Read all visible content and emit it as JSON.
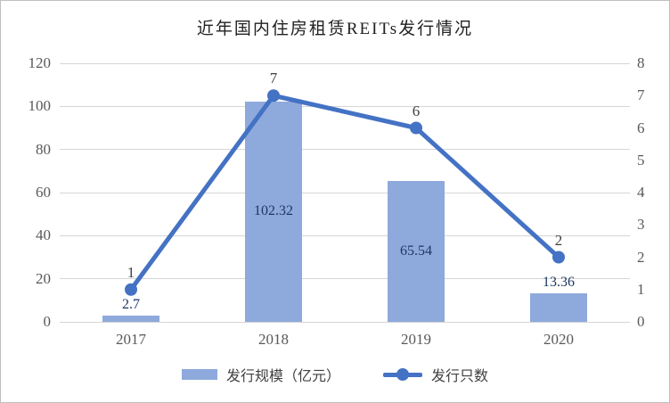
{
  "title": "近年国内住房租赁REITs发行情况",
  "legend": [
    {
      "label": "发行规模（亿元）",
      "series_type": "bar"
    },
    {
      "label": "发行只数",
      "series_type": "line"
    }
  ],
  "colors": {
    "bar": "#8EA9DB",
    "line": "#4472C4",
    "bar_label": "#1F3864",
    "line_label": "#404040",
    "axis_text": "#595959",
    "gridline": "#D6D6D6"
  },
  "chart_data": {
    "type": "bar",
    "subtype": "combo-bar-line-dual-axis",
    "title": "近年国内住房租赁REITs发行情况",
    "categories": [
      "2017",
      "2018",
      "2019",
      "2020"
    ],
    "series": [
      {
        "name": "发行规模（亿元）",
        "type": "bar",
        "axis": "left",
        "values": [
          2.7,
          102.32,
          65.54,
          13.36
        ],
        "labels": [
          "2.7",
          "102.32",
          "65.54",
          "13.36"
        ]
      },
      {
        "name": "发行只数",
        "type": "line",
        "axis": "right",
        "values": [
          1,
          7,
          6,
          2
        ],
        "labels": [
          "1",
          "7",
          "6",
          "2"
        ]
      }
    ],
    "left_axis": {
      "min": 0,
      "max": 120,
      "step": 20,
      "ticks": [
        "0",
        "20",
        "40",
        "60",
        "80",
        "100",
        "120"
      ]
    },
    "right_axis": {
      "min": 0,
      "max": 8,
      "step": 1,
      "ticks": [
        "0",
        "1",
        "2",
        "3",
        "4",
        "5",
        "6",
        "7",
        "8"
      ]
    },
    "grid": true,
    "legend_position": "bottom",
    "xlabel": "",
    "ylabel": ""
  }
}
